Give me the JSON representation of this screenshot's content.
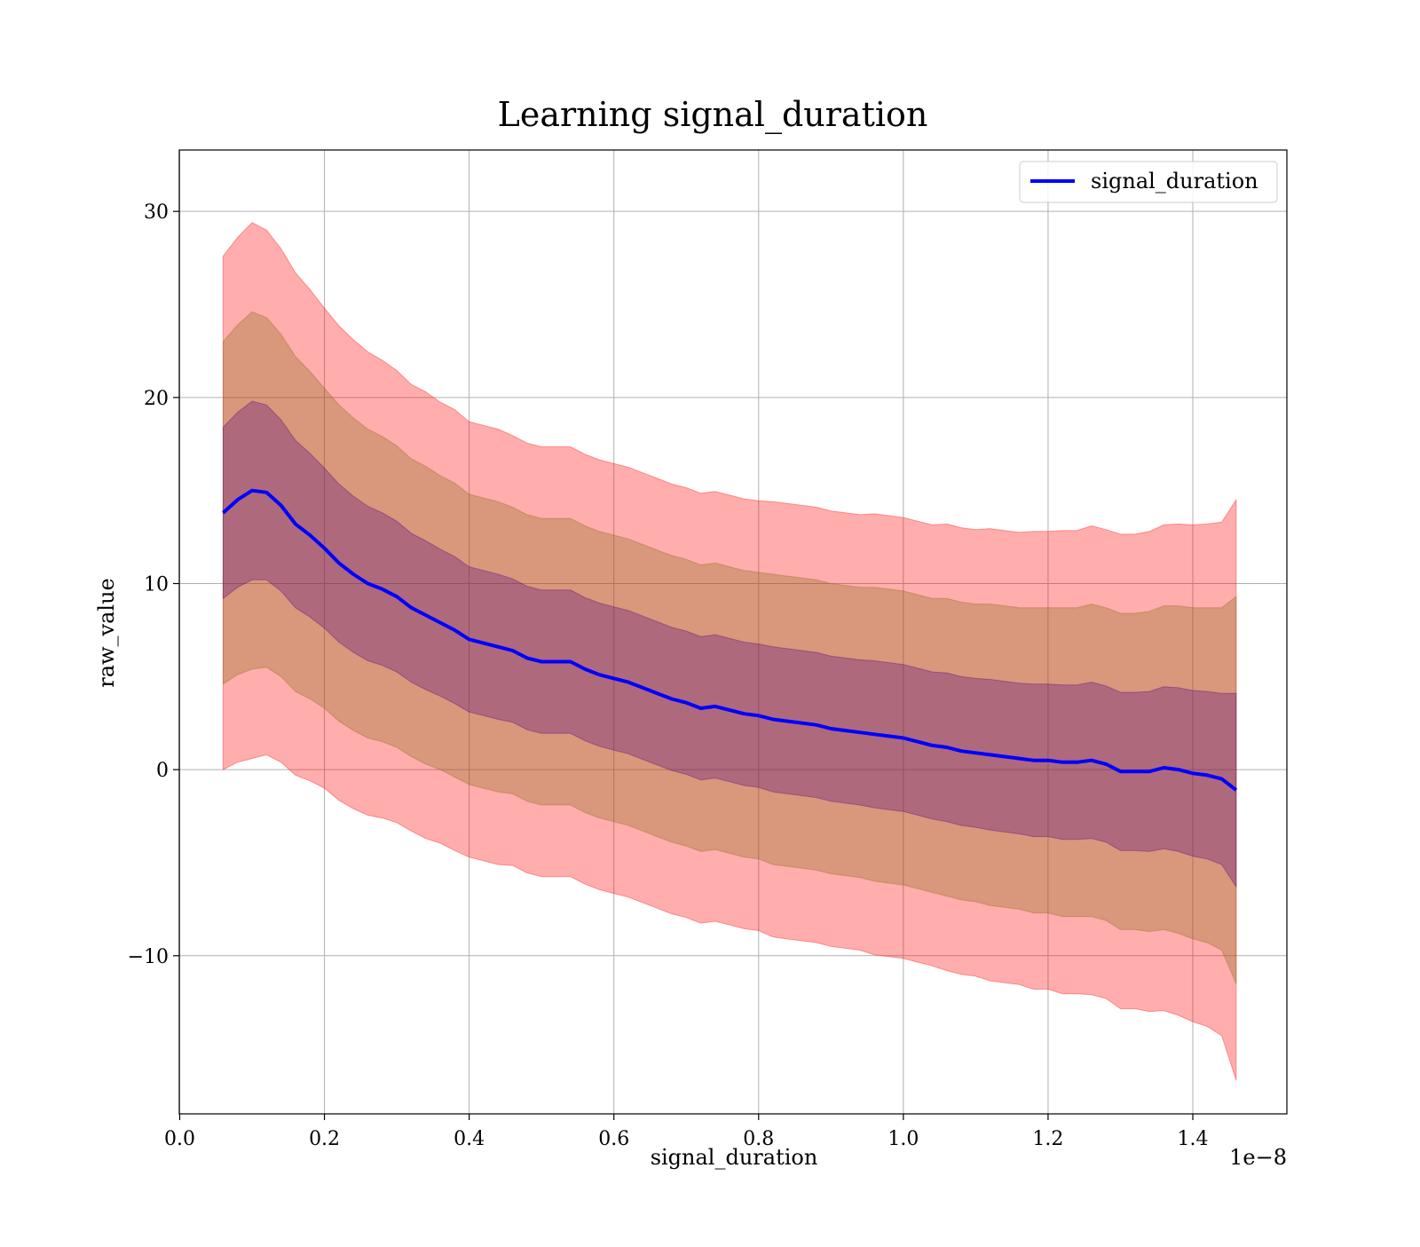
{
  "chart_data": {
    "type": "line",
    "title": "Learning signal_duration",
    "xlabel": "signal_duration",
    "ylabel": "raw_value",
    "x_offset_label": "1e−8",
    "xlim": [
      -6e-12,
      1.53e-08
    ],
    "ylim": [
      -18.5,
      33.3
    ],
    "x_ticks": [
      0.0,
      0.2,
      0.4,
      0.6,
      0.8,
      1.0,
      1.2,
      1.4
    ],
    "x_tick_labels": [
      "0.0",
      "0.2",
      "0.4",
      "0.6",
      "0.8",
      "1.0",
      "1.2",
      "1.4"
    ],
    "y_ticks": [
      -10,
      0,
      10,
      20,
      30
    ],
    "y_tick_labels": [
      "−10",
      "0",
      "10",
      "20",
      "30"
    ],
    "grid": true,
    "legend_position": "top-right",
    "series": [
      {
        "name": "signal_duration",
        "color": "#0000ff",
        "x": [
          0.06,
          0.08,
          0.1,
          0.12,
          0.14,
          0.16,
          0.18,
          0.2,
          0.22,
          0.24,
          0.26,
          0.28,
          0.3,
          0.32,
          0.34,
          0.36,
          0.38,
          0.4,
          0.42,
          0.44,
          0.46,
          0.48,
          0.5,
          0.52,
          0.54,
          0.56,
          0.58,
          0.6,
          0.62,
          0.64,
          0.66,
          0.68,
          0.7,
          0.72,
          0.74,
          0.76,
          0.78,
          0.8,
          0.82,
          0.84,
          0.86,
          0.88,
          0.9,
          0.92,
          0.94,
          0.96,
          0.98,
          1.0,
          1.02,
          1.04,
          1.06,
          1.08,
          1.1,
          1.12,
          1.14,
          1.16,
          1.18,
          1.2,
          1.22,
          1.24,
          1.26,
          1.28,
          1.3,
          1.32,
          1.34,
          1.36,
          1.38,
          1.4,
          1.42,
          1.44,
          1.46
        ],
        "y": [
          13.8,
          14.5,
          15.0,
          14.9,
          14.2,
          13.2,
          12.6,
          11.9,
          11.1,
          10.5,
          10.0,
          9.7,
          9.3,
          8.7,
          8.3,
          7.9,
          7.5,
          7.0,
          6.8,
          6.6,
          6.4,
          6.0,
          5.8,
          5.8,
          5.8,
          5.4,
          5.1,
          4.9,
          4.7,
          4.4,
          4.1,
          3.8,
          3.6,
          3.3,
          3.4,
          3.2,
          3.0,
          2.9,
          2.7,
          2.6,
          2.5,
          2.4,
          2.2,
          2.1,
          2.0,
          1.9,
          1.8,
          1.7,
          1.5,
          1.3,
          1.2,
          1.0,
          0.9,
          0.8,
          0.7,
          0.6,
          0.5,
          0.5,
          0.4,
          0.4,
          0.5,
          0.3,
          -0.1,
          -0.1,
          -0.1,
          0.1,
          0.0,
          -0.2,
          -0.3,
          -0.5,
          -1.1
        ],
        "std": [
          4.6,
          4.7,
          4.8,
          4.7,
          4.6,
          4.5,
          4.4,
          4.3,
          4.25,
          4.2,
          4.15,
          4.1,
          4.05,
          4.0,
          4.0,
          3.95,
          3.95,
          3.9,
          3.9,
          3.9,
          3.85,
          3.85,
          3.85,
          3.85,
          3.85,
          3.85,
          3.85,
          3.85,
          3.85,
          3.85,
          3.85,
          3.85,
          3.85,
          3.85,
          3.85,
          3.85,
          3.85,
          3.85,
          3.9,
          3.9,
          3.9,
          3.9,
          3.9,
          3.9,
          3.9,
          3.95,
          3.95,
          3.95,
          3.95,
          3.95,
          4.0,
          4.0,
          4.0,
          4.05,
          4.05,
          4.05,
          4.1,
          4.1,
          4.15,
          4.15,
          4.2,
          4.2,
          4.25,
          4.25,
          4.3,
          4.35,
          4.4,
          4.45,
          4.5,
          4.6,
          5.2
        ]
      }
    ],
    "bands": [
      {
        "sigma": 3,
        "color": "#ff0000",
        "opacity": 0.32
      },
      {
        "sigma": 2,
        "color": "#8b6914",
        "opacity": 0.33
      },
      {
        "sigma": 1,
        "color": "#4b0082",
        "opacity": 0.3
      }
    ]
  }
}
